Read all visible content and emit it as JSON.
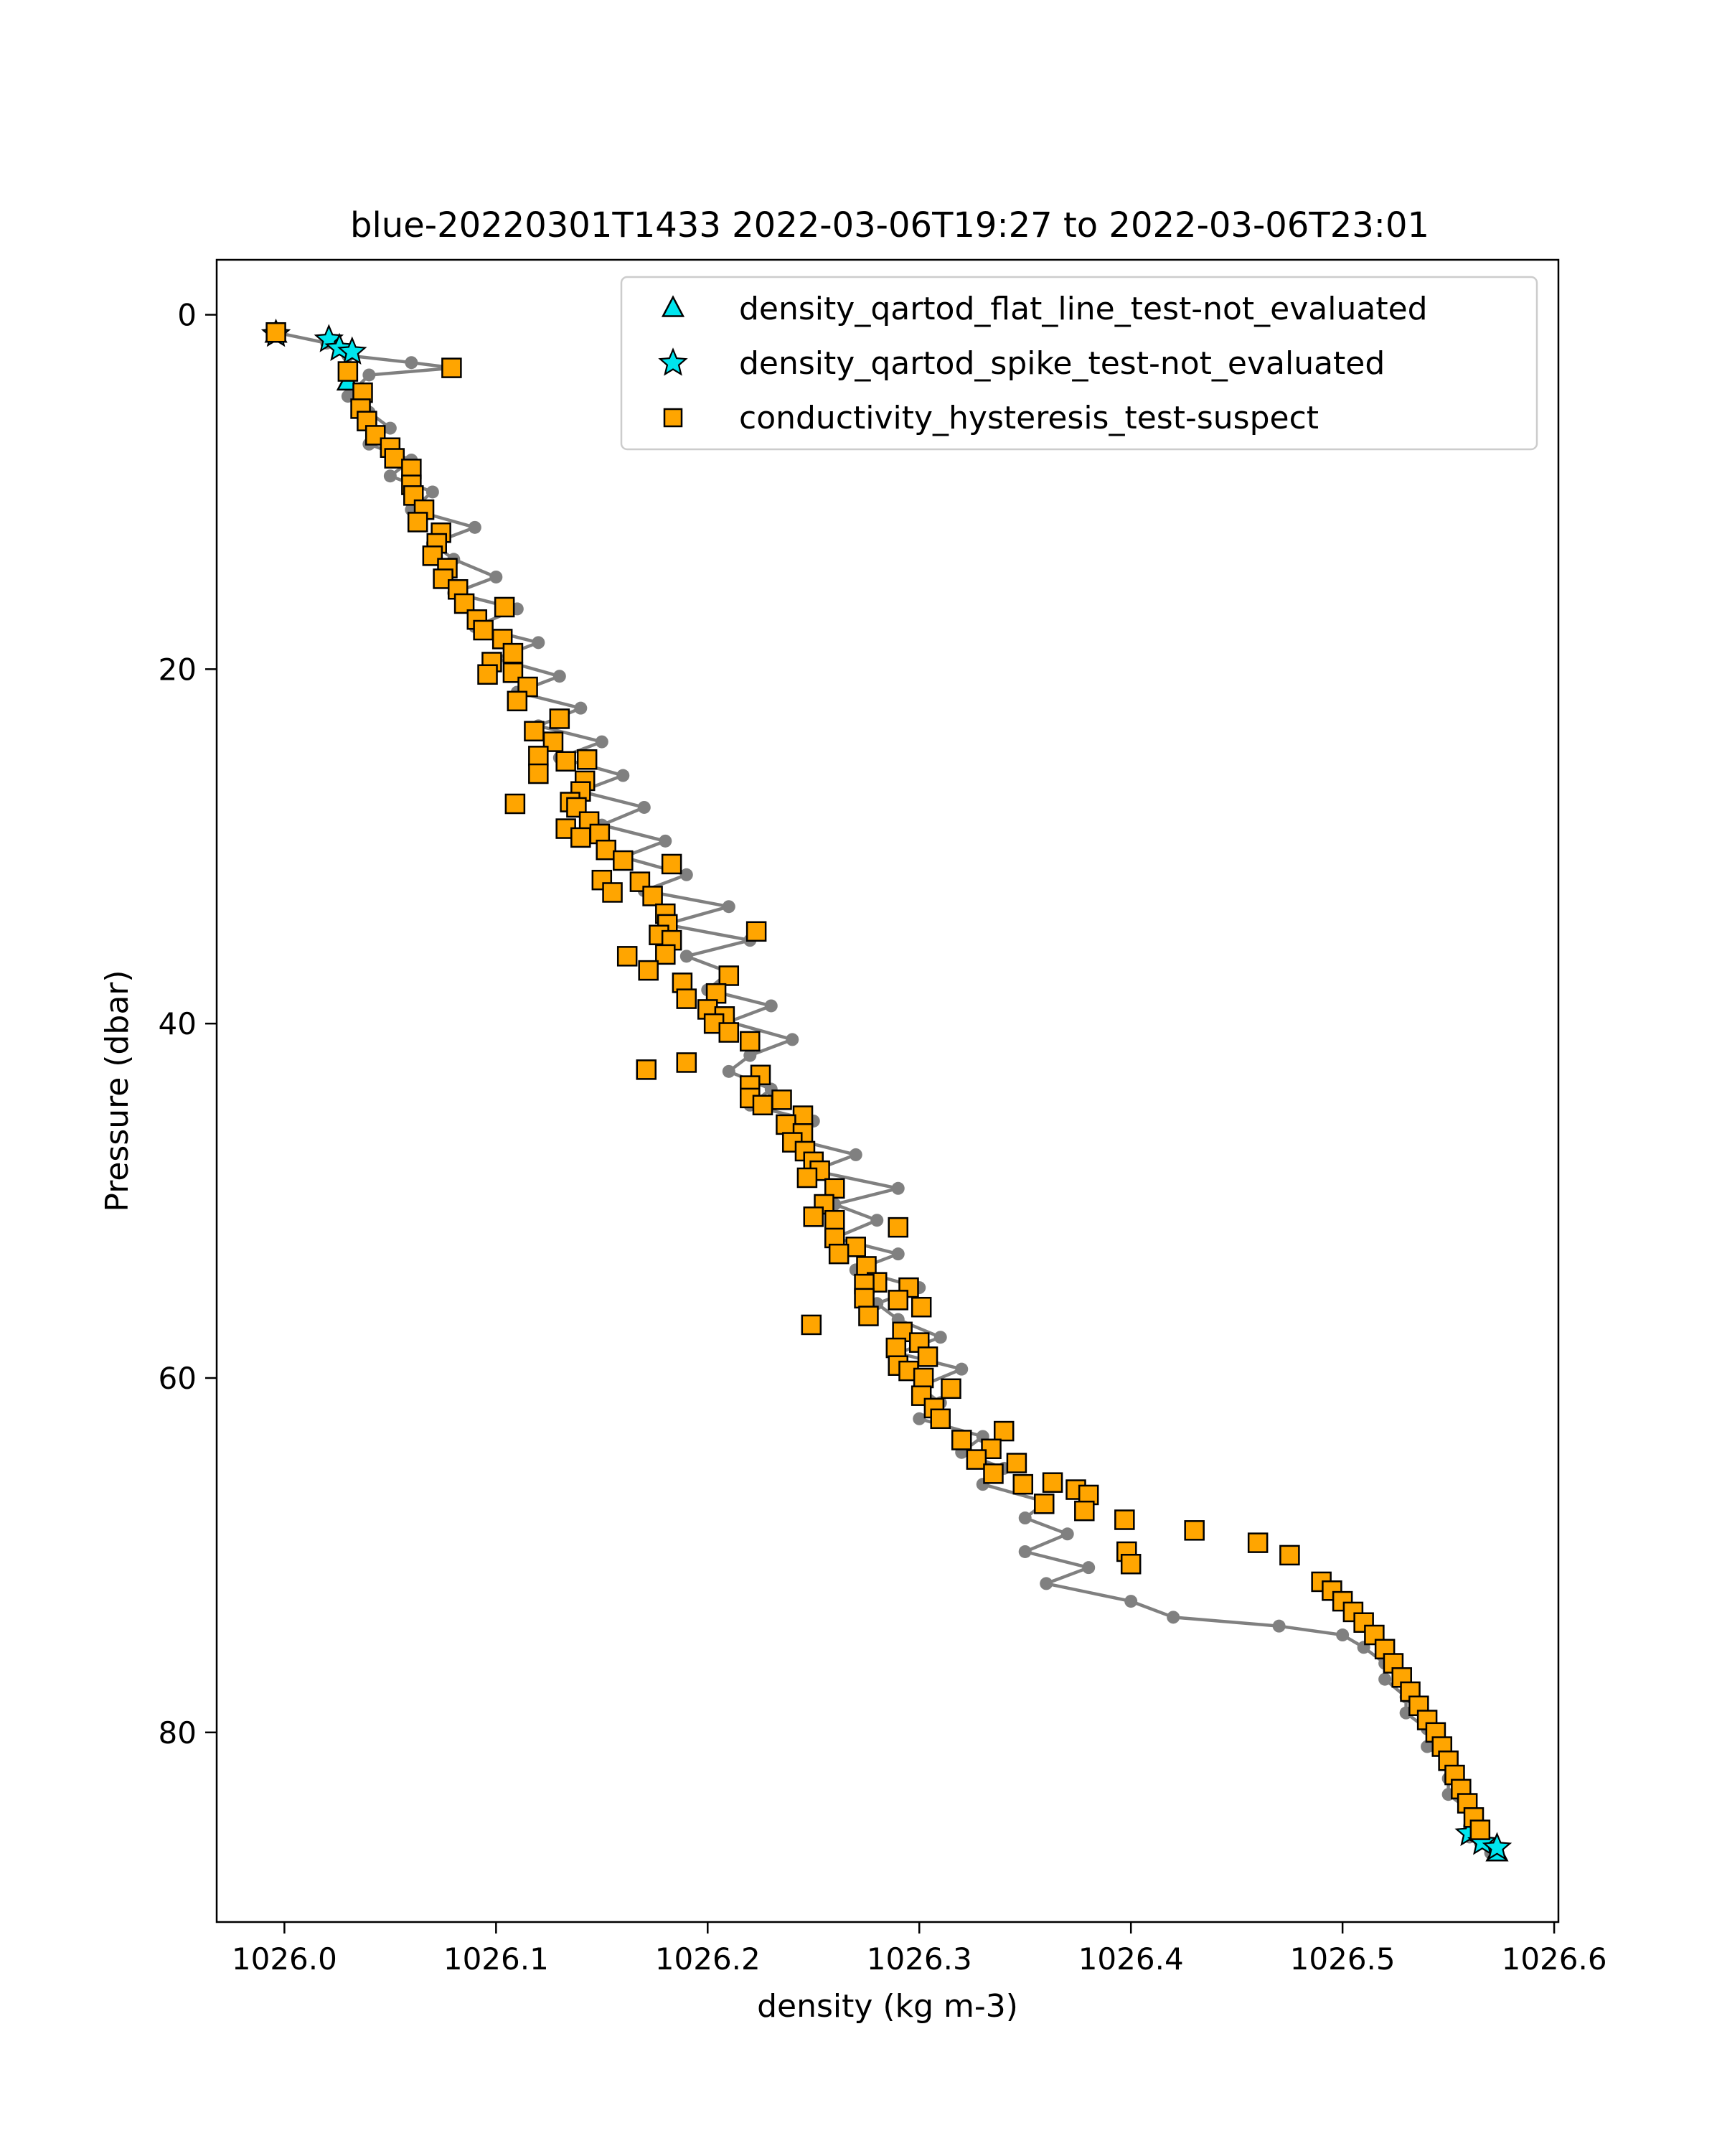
{
  "chart_data": {
    "type": "scatter",
    "title": "blue-20220301T1433 2022-03-06T19:27 to 2022-03-06T23:01",
    "xlabel": "density (kg m-3)",
    "ylabel": "Pressure (dbar)",
    "xlim": [
      1025.968,
      1026.602
    ],
    "ylim": [
      90.7,
      -3.1
    ],
    "y_inverted": true,
    "x_ticks": [
      1026.0,
      1026.1,
      1026.2,
      1026.3,
      1026.4,
      1026.5,
      1026.6
    ],
    "x_tick_labels": [
      "1026.0",
      "1026.1",
      "1026.2",
      "1026.3",
      "1026.4",
      "1026.5",
      "1026.6"
    ],
    "y_ticks": [
      0,
      20,
      40,
      60,
      80
    ],
    "y_tick_labels": [
      "0",
      "20",
      "40",
      "60",
      "80"
    ],
    "grid": false,
    "legend_position": "top-right",
    "colors": {
      "profile_line": "#808080",
      "flat_line_marker": "#00e5ee",
      "spike_marker": "#00e5ee",
      "hysteresis_marker": "#ffa500",
      "marker_edge": "#000000"
    },
    "series": [
      {
        "name": "",
        "kind": "profile-line",
        "points": [
          [
            1025.996,
            1.0
          ],
          [
            1026.02,
            1.6
          ],
          [
            1026.03,
            2.3
          ],
          [
            1026.06,
            2.7
          ],
          [
            1026.08,
            3.0
          ],
          [
            1026.04,
            3.4
          ],
          [
            1026.03,
            4.6
          ],
          [
            1026.04,
            5.5
          ],
          [
            1026.05,
            6.4
          ],
          [
            1026.04,
            7.3
          ],
          [
            1026.06,
            8.2
          ],
          [
            1026.05,
            9.1
          ],
          [
            1026.07,
            10.0
          ],
          [
            1026.06,
            11.0
          ],
          [
            1026.09,
            12.0
          ],
          [
            1026.07,
            12.9
          ],
          [
            1026.08,
            13.8
          ],
          [
            1026.1,
            14.8
          ],
          [
            1026.08,
            15.7
          ],
          [
            1026.11,
            16.6
          ],
          [
            1026.09,
            17.6
          ],
          [
            1026.12,
            18.5
          ],
          [
            1026.1,
            19.4
          ],
          [
            1026.13,
            20.4
          ],
          [
            1026.11,
            21.3
          ],
          [
            1026.14,
            22.2
          ],
          [
            1026.12,
            23.2
          ],
          [
            1026.15,
            24.1
          ],
          [
            1026.13,
            25.0
          ],
          [
            1026.16,
            26.0
          ],
          [
            1026.14,
            26.9
          ],
          [
            1026.17,
            27.8
          ],
          [
            1026.15,
            28.8
          ],
          [
            1026.18,
            29.7
          ],
          [
            1026.16,
            30.6
          ],
          [
            1026.19,
            31.6
          ],
          [
            1026.17,
            32.5
          ],
          [
            1026.21,
            33.4
          ],
          [
            1026.18,
            34.4
          ],
          [
            1026.22,
            35.3
          ],
          [
            1026.19,
            36.2
          ],
          [
            1026.21,
            37.1
          ],
          [
            1026.2,
            38.1
          ],
          [
            1026.23,
            39.0
          ],
          [
            1026.21,
            39.9
          ],
          [
            1026.24,
            40.9
          ],
          [
            1026.22,
            41.8
          ],
          [
            1026.21,
            42.7
          ],
          [
            1026.23,
            43.7
          ],
          [
            1026.22,
            44.6
          ],
          [
            1026.25,
            45.5
          ],
          [
            1026.24,
            46.5
          ],
          [
            1026.27,
            47.4
          ],
          [
            1026.25,
            48.3
          ],
          [
            1026.29,
            49.3
          ],
          [
            1026.26,
            50.2
          ],
          [
            1026.28,
            51.1
          ],
          [
            1026.26,
            52.1
          ],
          [
            1026.29,
            53.0
          ],
          [
            1026.27,
            53.9
          ],
          [
            1026.3,
            54.9
          ],
          [
            1026.28,
            55.8
          ],
          [
            1026.29,
            56.7
          ],
          [
            1026.31,
            57.7
          ],
          [
            1026.29,
            58.6
          ],
          [
            1026.32,
            59.5
          ],
          [
            1026.3,
            60.5
          ],
          [
            1026.31,
            61.4
          ],
          [
            1026.3,
            62.3
          ],
          [
            1026.33,
            63.3
          ],
          [
            1026.32,
            64.2
          ],
          [
            1026.34,
            65.1
          ],
          [
            1026.33,
            66.0
          ],
          [
            1026.36,
            67.0
          ],
          [
            1026.35,
            67.9
          ],
          [
            1026.37,
            68.8
          ],
          [
            1026.35,
            69.8
          ],
          [
            1026.38,
            70.7
          ],
          [
            1026.36,
            71.6
          ],
          [
            1026.4,
            72.6
          ],
          [
            1026.42,
            73.5
          ],
          [
            1026.47,
            74.0
          ],
          [
            1026.5,
            74.5
          ],
          [
            1026.51,
            75.2
          ],
          [
            1026.52,
            76.1
          ],
          [
            1026.52,
            77.0
          ],
          [
            1026.53,
            78.0
          ],
          [
            1026.53,
            78.9
          ],
          [
            1026.54,
            79.8
          ],
          [
            1026.54,
            80.8
          ],
          [
            1026.55,
            81.7
          ],
          [
            1026.55,
            82.6
          ],
          [
            1026.55,
            83.5
          ],
          [
            1026.56,
            84.4
          ],
          [
            1026.56,
            85.3
          ],
          [
            1026.56,
            85.9
          ],
          [
            1026.565,
            86.2
          ],
          [
            1026.57,
            86.5
          ],
          [
            1026.57,
            86.8
          ]
        ]
      },
      {
        "name": "density_qartod_flat_line_test-not_evaluated",
        "kind": "triangle",
        "points": [
          [
            1025.996,
            1.1
          ],
          [
            1026.03,
            3.8
          ],
          [
            1026.573,
            86.8
          ]
        ]
      },
      {
        "name": "density_qartod_spike_test-not_evaluated",
        "kind": "star",
        "points": [
          [
            1025.996,
            1.1
          ],
          [
            1026.021,
            1.4
          ],
          [
            1026.026,
            1.9
          ],
          [
            1026.032,
            2.1
          ],
          [
            1026.56,
            85.7
          ],
          [
            1026.566,
            86.2
          ],
          [
            1026.573,
            86.5
          ]
        ]
      },
      {
        "name": "conductivity_hysteresis_test-suspect",
        "kind": "square",
        "points": [
          [
            1025.996,
            1.0
          ],
          [
            1026.079,
            3.0
          ],
          [
            1026.03,
            3.2
          ],
          [
            1026.037,
            4.4
          ],
          [
            1026.036,
            5.3
          ],
          [
            1026.039,
            6.0
          ],
          [
            1026.043,
            6.8
          ],
          [
            1026.05,
            7.5
          ],
          [
            1026.052,
            8.1
          ],
          [
            1026.06,
            8.7
          ],
          [
            1026.06,
            9.6
          ],
          [
            1026.061,
            10.2
          ],
          [
            1026.066,
            11.0
          ],
          [
            1026.063,
            11.7
          ],
          [
            1026.074,
            12.3
          ],
          [
            1026.072,
            12.9
          ],
          [
            1026.07,
            13.6
          ],
          [
            1026.077,
            14.3
          ],
          [
            1026.075,
            14.9
          ],
          [
            1026.082,
            15.5
          ],
          [
            1026.085,
            16.3
          ],
          [
            1026.104,
            16.5
          ],
          [
            1026.091,
            17.2
          ],
          [
            1026.094,
            17.8
          ],
          [
            1026.103,
            18.3
          ],
          [
            1026.108,
            19.1
          ],
          [
            1026.098,
            19.6
          ],
          [
            1026.108,
            20.2
          ],
          [
            1026.096,
            20.3
          ],
          [
            1026.115,
            21.0
          ],
          [
            1026.11,
            21.8
          ],
          [
            1026.13,
            22.8
          ],
          [
            1026.118,
            23.5
          ],
          [
            1026.127,
            24.1
          ],
          [
            1026.12,
            24.9
          ],
          [
            1026.143,
            25.1
          ],
          [
            1026.133,
            25.2
          ],
          [
            1026.12,
            25.9
          ],
          [
            1026.142,
            26.3
          ],
          [
            1026.14,
            26.9
          ],
          [
            1026.135,
            27.5
          ],
          [
            1026.109,
            27.6
          ],
          [
            1026.138,
            27.8
          ],
          [
            1026.144,
            28.6
          ],
          [
            1026.133,
            29.0
          ],
          [
            1026.149,
            29.3
          ],
          [
            1026.14,
            29.5
          ],
          [
            1026.152,
            30.2
          ],
          [
            1026.16,
            30.8
          ],
          [
            1026.183,
            31.0
          ],
          [
            1026.15,
            31.9
          ],
          [
            1026.168,
            32.0
          ],
          [
            1026.155,
            32.6
          ],
          [
            1026.174,
            32.8
          ],
          [
            1026.18,
            33.8
          ],
          [
            1026.181,
            34.4
          ],
          [
            1026.223,
            34.8
          ],
          [
            1026.177,
            35.0
          ],
          [
            1026.183,
            35.3
          ],
          [
            1026.18,
            36.1
          ],
          [
            1026.162,
            36.2
          ],
          [
            1026.172,
            37.0
          ],
          [
            1026.21,
            37.3
          ],
          [
            1026.188,
            37.7
          ],
          [
            1026.204,
            38.3
          ],
          [
            1026.19,
            38.6
          ],
          [
            1026.2,
            39.2
          ],
          [
            1026.208,
            39.6
          ],
          [
            1026.203,
            40.0
          ],
          [
            1026.21,
            40.5
          ],
          [
            1026.22,
            41.0
          ],
          [
            1026.19,
            42.2
          ],
          [
            1026.171,
            42.6
          ],
          [
            1026.225,
            42.9
          ],
          [
            1026.22,
            43.5
          ],
          [
            1026.22,
            44.2
          ],
          [
            1026.226,
            44.6
          ],
          [
            1026.235,
            44.3
          ],
          [
            1026.245,
            45.2
          ],
          [
            1026.237,
            45.7
          ],
          [
            1026.245,
            46.2
          ],
          [
            1026.24,
            46.7
          ],
          [
            1026.246,
            47.2
          ],
          [
            1026.25,
            47.8
          ],
          [
            1026.253,
            48.3
          ],
          [
            1026.247,
            48.7
          ],
          [
            1026.26,
            49.3
          ],
          [
            1026.255,
            50.2
          ],
          [
            1026.26,
            51.1
          ],
          [
            1026.25,
            50.9
          ],
          [
            1026.26,
            52.1
          ],
          [
            1026.29,
            51.5
          ],
          [
            1026.27,
            52.6
          ],
          [
            1026.262,
            53.0
          ],
          [
            1026.275,
            53.7
          ],
          [
            1026.28,
            54.6
          ],
          [
            1026.295,
            54.9
          ],
          [
            1026.274,
            54.7
          ],
          [
            1026.29,
            55.6
          ],
          [
            1026.274,
            55.5
          ],
          [
            1026.301,
            56.0
          ],
          [
            1026.276,
            56.5
          ],
          [
            1026.249,
            57.0
          ],
          [
            1026.292,
            57.4
          ],
          [
            1026.3,
            58.0
          ],
          [
            1026.289,
            58.3
          ],
          [
            1026.304,
            58.8
          ],
          [
            1026.29,
            59.3
          ],
          [
            1026.295,
            59.6
          ],
          [
            1026.302,
            60.0
          ],
          [
            1026.315,
            60.6
          ],
          [
            1026.301,
            61.0
          ],
          [
            1026.307,
            61.7
          ],
          [
            1026.31,
            62.3
          ],
          [
            1026.34,
            63.0
          ],
          [
            1026.32,
            63.5
          ],
          [
            1026.334,
            64.0
          ],
          [
            1026.327,
            64.6
          ],
          [
            1026.346,
            64.8
          ],
          [
            1026.335,
            65.4
          ],
          [
            1026.363,
            65.9
          ],
          [
            1026.349,
            66.0
          ],
          [
            1026.374,
            66.3
          ],
          [
            1026.38,
            66.6
          ],
          [
            1026.359,
            67.1
          ],
          [
            1026.378,
            67.5
          ],
          [
            1026.397,
            68.0
          ],
          [
            1026.43,
            68.6
          ],
          [
            1026.46,
            69.3
          ],
          [
            1026.475,
            70.0
          ],
          [
            1026.398,
            69.8
          ],
          [
            1026.4,
            70.5
          ],
          [
            1026.49,
            71.5
          ],
          [
            1026.495,
            72.0
          ],
          [
            1026.5,
            72.6
          ],
          [
            1026.505,
            73.2
          ],
          [
            1026.51,
            73.8
          ],
          [
            1026.515,
            74.5
          ],
          [
            1026.52,
            75.3
          ],
          [
            1026.524,
            76.1
          ],
          [
            1026.528,
            76.9
          ],
          [
            1026.532,
            77.7
          ],
          [
            1026.536,
            78.5
          ],
          [
            1026.54,
            79.3
          ],
          [
            1026.544,
            80.0
          ],
          [
            1026.547,
            80.8
          ],
          [
            1026.55,
            81.6
          ],
          [
            1026.553,
            82.4
          ],
          [
            1026.556,
            83.2
          ],
          [
            1026.559,
            84.0
          ],
          [
            1026.562,
            84.8
          ],
          [
            1026.565,
            85.5
          ]
        ]
      }
    ]
  }
}
